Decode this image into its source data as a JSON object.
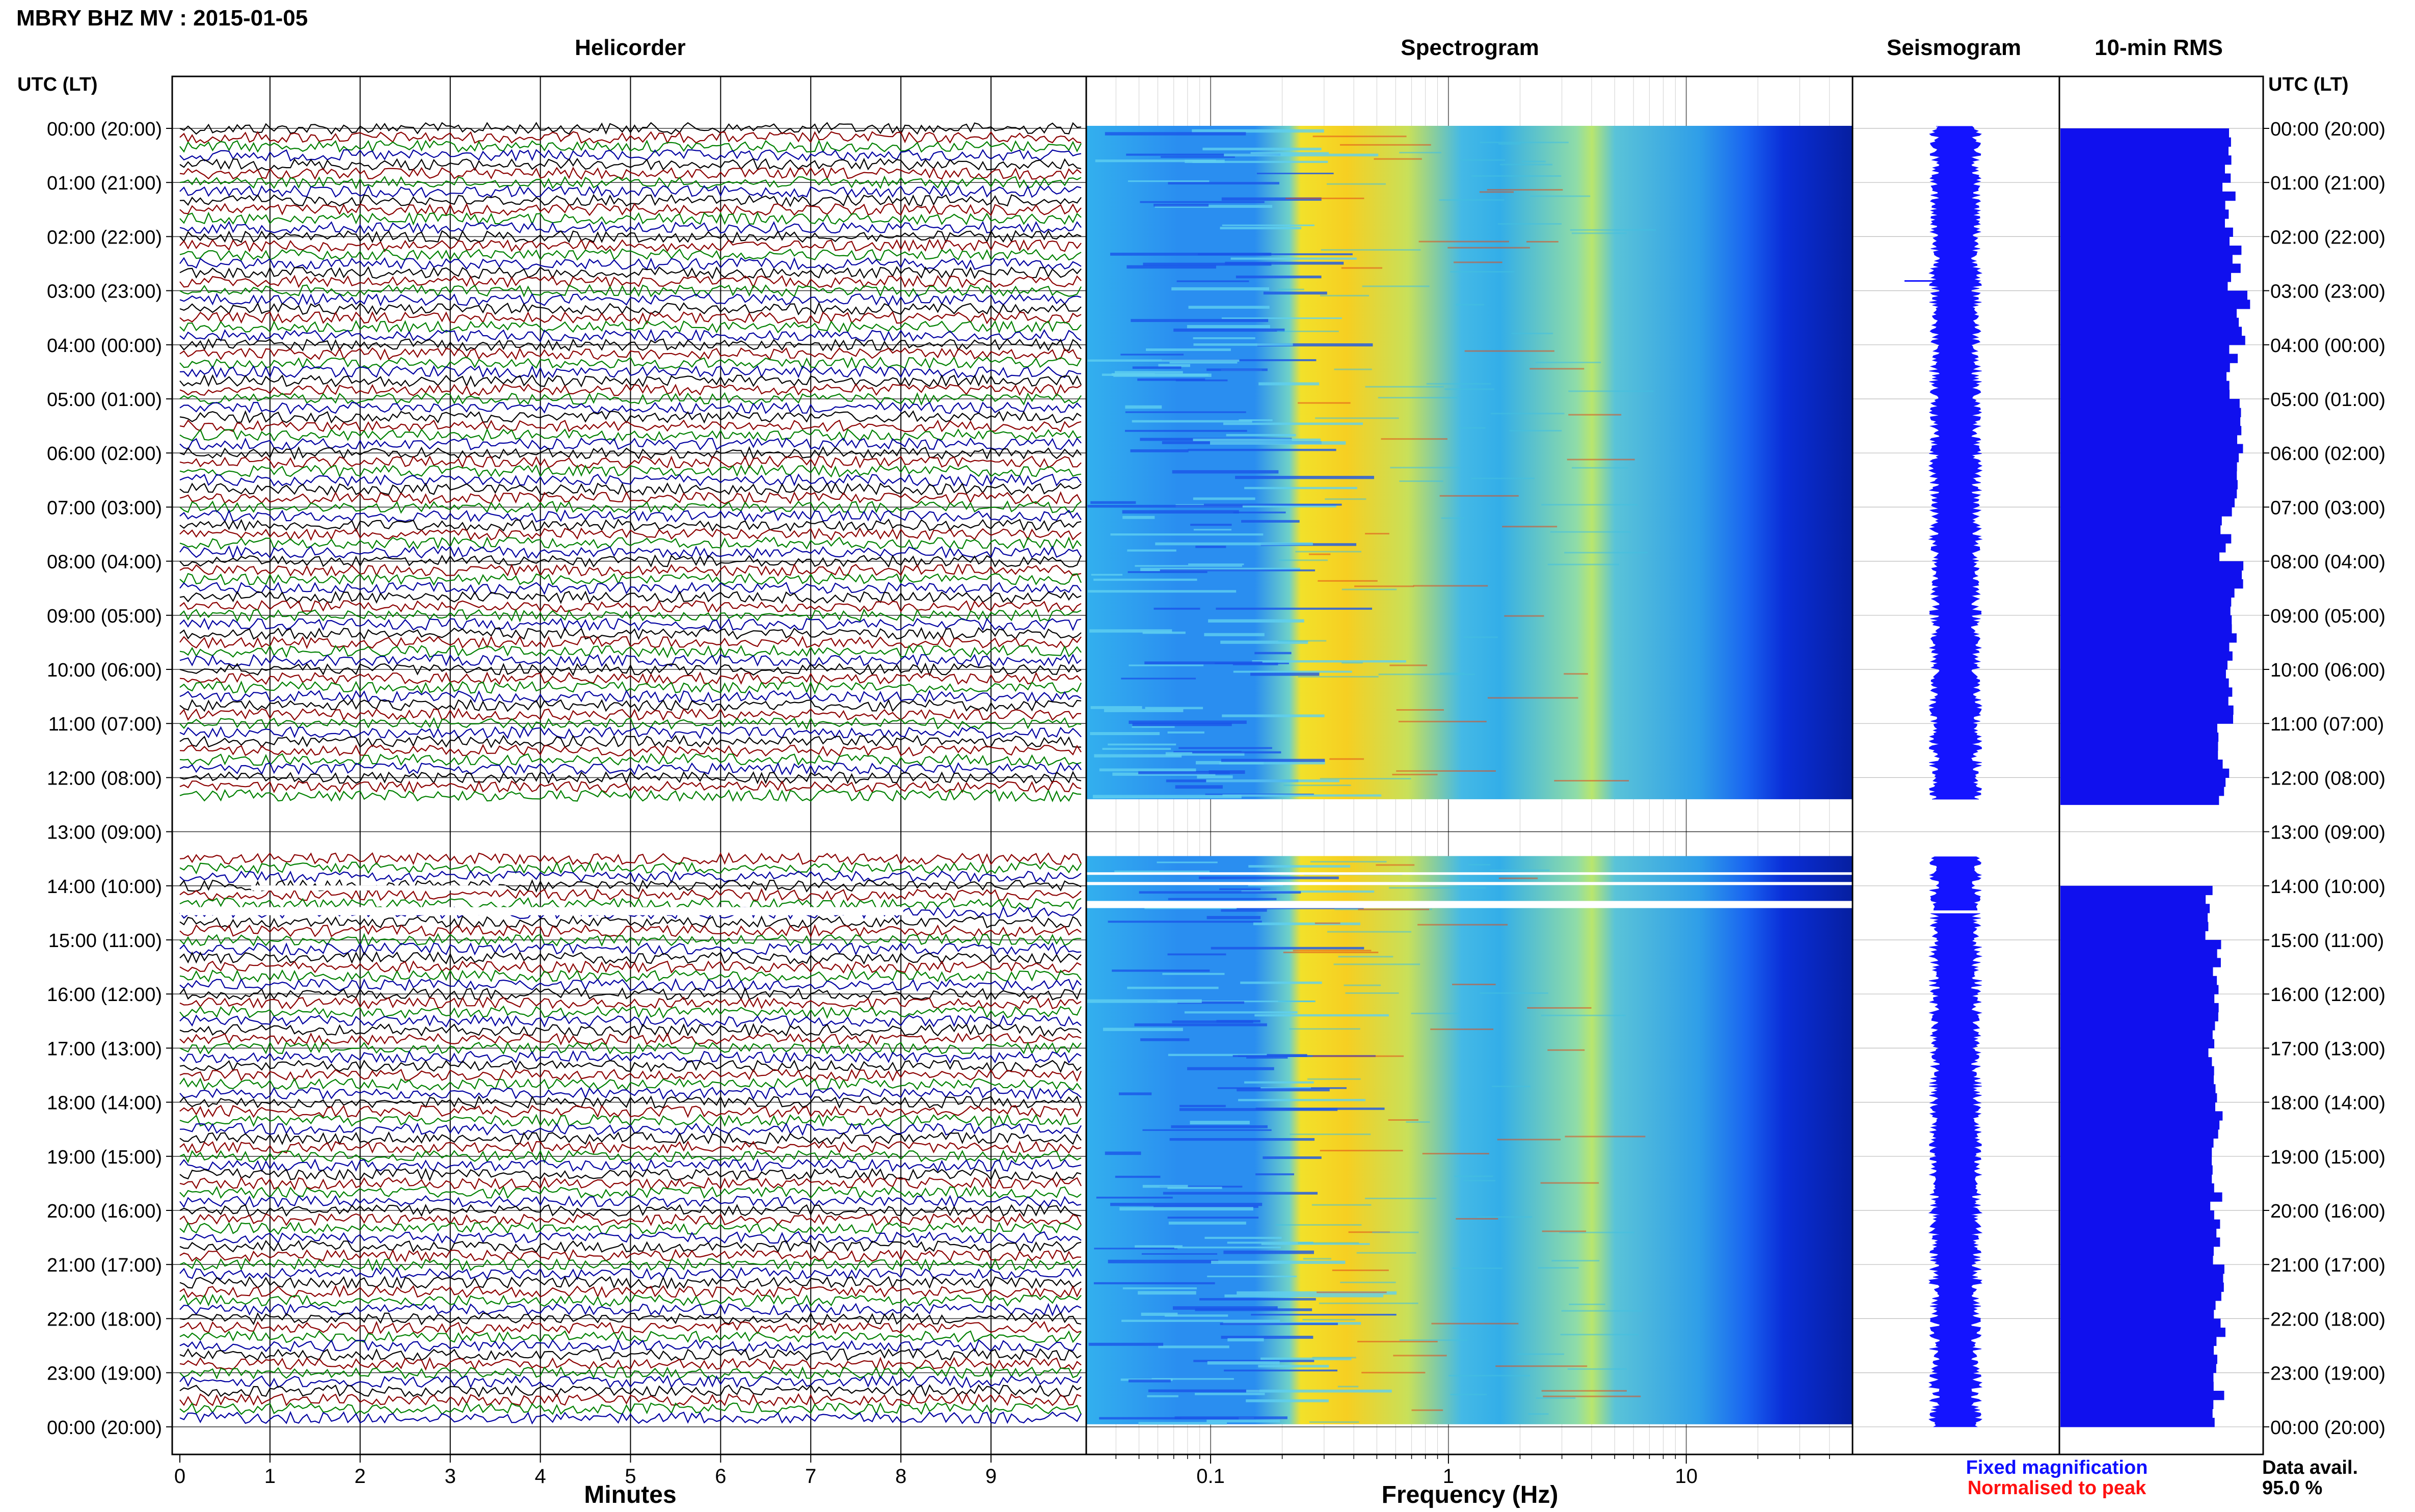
{
  "header": {
    "title": "MBRY BHZ MV : 2015-01-05"
  },
  "panels": {
    "helicorder": "Helicorder",
    "spectrogram": "Spectrogram",
    "seismogram": "Seismogram",
    "rms": "10-min RMS"
  },
  "axis": {
    "time_header_left": "UTC (LT)",
    "time_header_right": "UTC (LT)",
    "helicorder_xlabel": "Minutes",
    "spectrogram_xlabel": "Frequency (Hz)"
  },
  "legend": {
    "fixed": "Fixed magnification",
    "fixed_color": "#1010ff",
    "normalised": "Normalised to peak",
    "normalised_color": "#ff1010"
  },
  "availability": {
    "label": "Data avail.",
    "value": "95.0 %"
  },
  "colors": {
    "trace_cycle": [
      "#000000",
      "#8b0000",
      "#008000",
      "#0000a0"
    ],
    "seis_blue": "#1414ff",
    "rms_blue": "#1010ee"
  },
  "chart_data": {
    "type": "heatmap",
    "station": "MBRY BHZ MV",
    "date": "2015-01-05",
    "time_labels": [
      "00:00 (20:00)",
      "01:00 (21:00)",
      "02:00 (22:00)",
      "03:00 (23:00)",
      "04:00 (00:00)",
      "05:00 (01:00)",
      "06:00 (02:00)",
      "07:00 (03:00)",
      "08:00 (04:00)",
      "09:00 (05:00)",
      "10:00 (06:00)",
      "11:00 (07:00)",
      "12:00 (08:00)",
      "13:00 (09:00)",
      "14:00 (10:00)",
      "15:00 (11:00)",
      "16:00 (12:00)",
      "17:00 (13:00)",
      "18:00 (14:00)",
      "19:00 (15:00)",
      "20:00 (16:00)",
      "21:00 (17:00)",
      "22:00 (18:00)",
      "23:00 (19:00)",
      "00:00 (20:00)"
    ],
    "helicorder": {
      "xlim": [
        0,
        10
      ],
      "xticks": [
        "0",
        "1",
        "2",
        "3",
        "4",
        "5",
        "6",
        "7",
        "8",
        "9"
      ],
      "minutes_per_line": 10,
      "data_gap_utc_hours": [
        12.4,
        13.5
      ]
    },
    "spectrogram": {
      "x_scale": "log",
      "xlim": [
        0.03,
        50
      ],
      "xticks": [
        "0.1",
        "1",
        "10"
      ],
      "dominant_band_hz": [
        0.2,
        0.5
      ],
      "secondary_peak_hz": 3.8
    },
    "rms_10min": {
      "hour_values": [
        0.93,
        0.92,
        0.95,
        1.0,
        0.93,
        0.98,
        0.94,
        0.9,
        0.96,
        0.93,
        0.91,
        0.89,
        0.88,
        null,
        0.82,
        0.86,
        0.83,
        0.84,
        0.86,
        0.85,
        0.84,
        0.86,
        0.87,
        0.86
      ]
    },
    "data_availability_percent": 95.0
  }
}
